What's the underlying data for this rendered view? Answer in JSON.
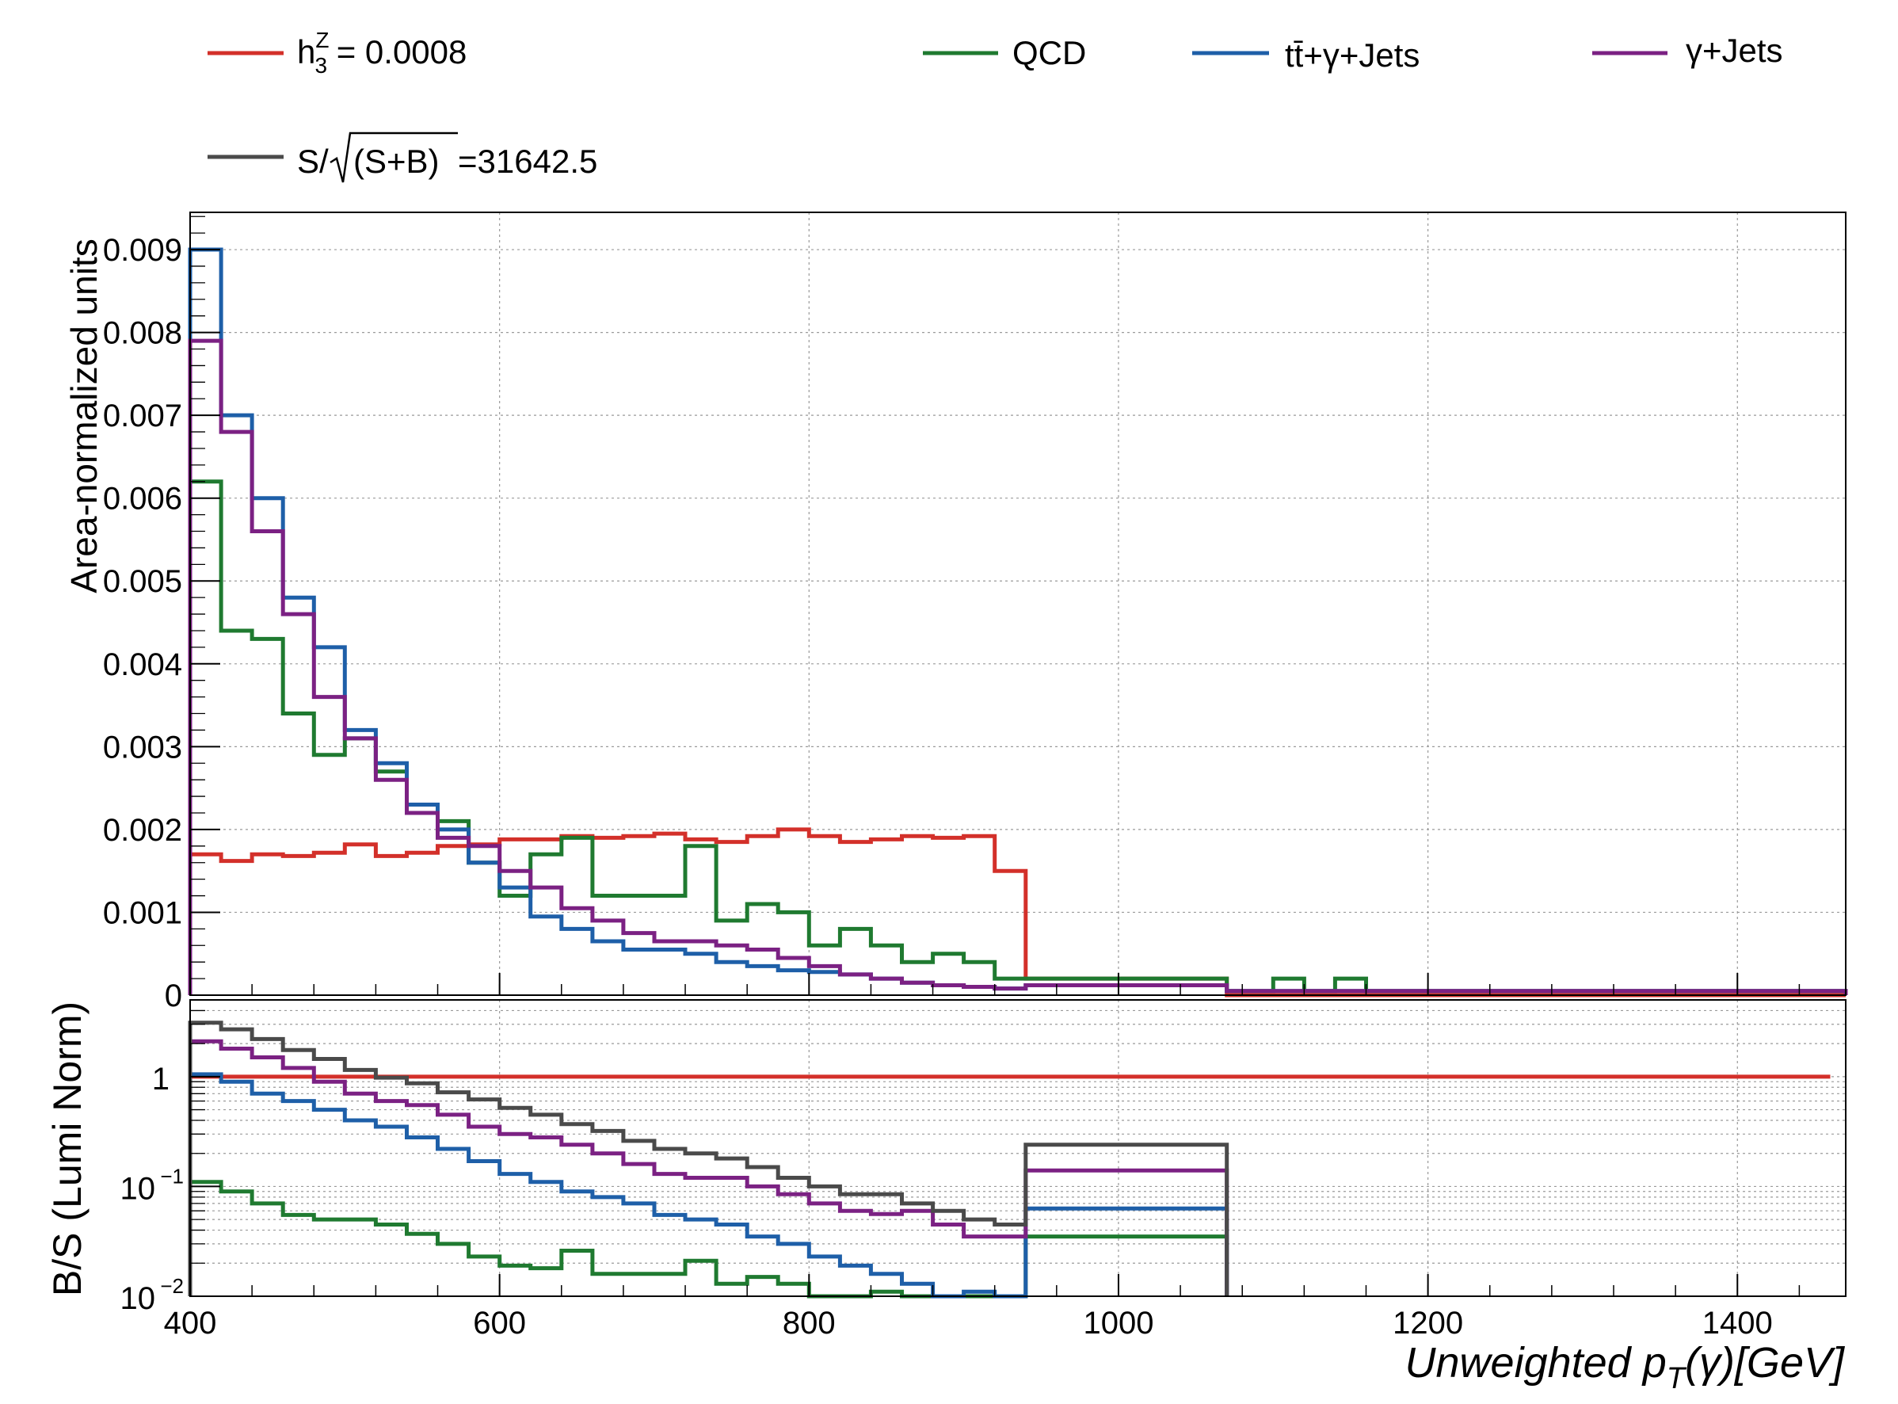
{
  "legend": {
    "entries": [
      {
        "key": "signal",
        "label": "h",
        "sup": "Z",
        "sub": "3",
        "suffix": " = 0.0008",
        "color": "#d3302a"
      },
      {
        "key": "qcd",
        "label": "QCD",
        "color": "#1f7a30"
      },
      {
        "key": "ttgj",
        "label": "tt̄+γ+Jets",
        "color": "#1e5fa8"
      },
      {
        "key": "gj",
        "label": "γ+Jets",
        "color": "#7b2183"
      },
      {
        "key": "sig",
        "label": "S/",
        "radical": "(S+B)",
        "suffix": "=31642.5",
        "color": "#4a4a4a"
      }
    ]
  },
  "chart_data": [
    {
      "type": "line",
      "title": "",
      "xlabel": "Unweighted   p_T(γ)[GeV]",
      "xlabel_parts": {
        "prefix": "Unweighted   p",
        "sub": "T",
        "suffix": "(γ)[GeV]"
      },
      "ylabel": "Area-normalized units",
      "xlim": [
        400,
        1470
      ],
      "ylim": [
        0,
        0.00945
      ],
      "grid": true,
      "xticks": [
        {
          "value": 400,
          "label": "400"
        },
        {
          "value": 600,
          "label": "600"
        },
        {
          "value": 800,
          "label": "800"
        },
        {
          "value": 1000,
          "label": "1000"
        },
        {
          "value": 1200,
          "label": "1200"
        },
        {
          "value": 1400,
          "label": "1400"
        }
      ],
      "yticks": [
        {
          "value": 0,
          "label": "0"
        },
        {
          "value": 0.001,
          "label": "0.001"
        },
        {
          "value": 0.002,
          "label": "0.002"
        },
        {
          "value": 0.003,
          "label": "0.003"
        },
        {
          "value": 0.004,
          "label": "0.004"
        },
        {
          "value": 0.005,
          "label": "0.005"
        },
        {
          "value": 0.006,
          "label": "0.006"
        },
        {
          "value": 0.007,
          "label": "0.007"
        },
        {
          "value": 0.008,
          "label": "0.008"
        },
        {
          "value": 0.009,
          "label": "0.009"
        }
      ],
      "series": [
        {
          "key": "signal",
          "color": "#d3302a",
          "edges": [
            400,
            420,
            440,
            460,
            480,
            500,
            520,
            540,
            560,
            580,
            600,
            620,
            640,
            660,
            680,
            700,
            720,
            740,
            760,
            780,
            800,
            820,
            840,
            860,
            880,
            900,
            920,
            940,
            1070,
            1470
          ],
          "values": [
            0.0017,
            0.00162,
            0.0017,
            0.00168,
            0.00172,
            0.00182,
            0.00168,
            0.00172,
            0.0018,
            0.00182,
            0.00188,
            0.00188,
            0.00192,
            0.0019,
            0.00192,
            0.00195,
            0.00188,
            0.00185,
            0.00192,
            0.002,
            0.00192,
            0.00185,
            0.00188,
            0.00192,
            0.0019,
            0.00192,
            0.0015,
            0.0002,
            0.0
          ]
        },
        {
          "key": "qcd",
          "color": "#1f7a30",
          "edges": [
            400,
            420,
            440,
            460,
            480,
            500,
            520,
            540,
            560,
            580,
            600,
            620,
            640,
            660,
            680,
            700,
            720,
            740,
            760,
            780,
            800,
            820,
            840,
            860,
            880,
            900,
            920,
            940,
            1070,
            1100,
            1120,
            1140,
            1160,
            1470
          ],
          "values": [
            0.0062,
            0.0044,
            0.0043,
            0.0034,
            0.0029,
            0.0031,
            0.0027,
            0.0022,
            0.0021,
            0.0016,
            0.0012,
            0.0017,
            0.0019,
            0.0012,
            0.0012,
            0.0012,
            0.0018,
            0.0009,
            0.0011,
            0.001,
            0.0006,
            0.0008,
            0.0006,
            0.0004,
            0.0005,
            0.0004,
            0.0002,
            0.0002,
            5e-05,
            0.0002,
            5e-05,
            0.0002,
            5e-05
          ]
        },
        {
          "key": "ttgj",
          "color": "#1e5fa8",
          "edges": [
            400,
            420,
            440,
            460,
            480,
            500,
            520,
            540,
            560,
            580,
            600,
            620,
            640,
            660,
            680,
            700,
            720,
            740,
            760,
            780,
            800,
            820,
            840,
            860,
            880,
            900,
            920,
            940,
            1070,
            1470
          ],
          "values": [
            0.009,
            0.007,
            0.006,
            0.0048,
            0.0042,
            0.0032,
            0.0028,
            0.0023,
            0.002,
            0.0016,
            0.0013,
            0.00095,
            0.0008,
            0.00065,
            0.00055,
            0.00055,
            0.0005,
            0.0004,
            0.00035,
            0.0003,
            0.00028,
            0.00025,
            0.0002,
            0.00015,
            0.00012,
            0.0001,
            8e-05,
            0.00012,
            5e-05
          ]
        },
        {
          "key": "gj",
          "color": "#7b2183",
          "edges": [
            400,
            420,
            440,
            460,
            480,
            500,
            520,
            540,
            560,
            580,
            600,
            620,
            640,
            660,
            680,
            700,
            720,
            740,
            760,
            780,
            800,
            820,
            840,
            860,
            880,
            900,
            920,
            940,
            1070,
            1470
          ],
          "values": [
            0.0079,
            0.0068,
            0.0056,
            0.0046,
            0.0036,
            0.0031,
            0.0026,
            0.0022,
            0.0019,
            0.0018,
            0.0015,
            0.0013,
            0.00105,
            0.0009,
            0.00075,
            0.00065,
            0.00065,
            0.0006,
            0.00055,
            0.00045,
            0.00035,
            0.00025,
            0.0002,
            0.00015,
            0.00012,
            0.0001,
            8e-05,
            0.00012,
            5e-05
          ]
        }
      ]
    },
    {
      "type": "line",
      "title": "",
      "xlabel": "",
      "ylabel": "B/S (Lumi Norm)",
      "xlim": [
        400,
        1470
      ],
      "ylim": [
        0.01,
        5
      ],
      "yscale": "log",
      "grid": true,
      "yticks": [
        {
          "value": 1,
          "label": "1",
          "exp": ""
        },
        {
          "value": 0.1,
          "label": "10",
          "exp": "−1"
        },
        {
          "value": 0.01,
          "label": "10",
          "exp": "−2"
        }
      ],
      "series": [
        {
          "key": "signal",
          "color": "#d3302a",
          "edges": [
            400,
            1460
          ],
          "values": [
            1.0
          ]
        },
        {
          "key": "qcd",
          "color": "#1f7a30",
          "edges": [
            400,
            420,
            440,
            460,
            480,
            500,
            520,
            540,
            560,
            580,
            600,
            620,
            640,
            660,
            680,
            700,
            720,
            740,
            760,
            780,
            800,
            820,
            840,
            860,
            880,
            900,
            920,
            940,
            1070
          ],
          "values": [
            0.11,
            0.09,
            0.07,
            0.055,
            0.05,
            0.05,
            0.045,
            0.037,
            0.03,
            0.023,
            0.019,
            0.018,
            0.026,
            0.016,
            0.016,
            0.016,
            0.021,
            0.013,
            0.015,
            0.013,
            0.0095,
            0.0095,
            0.011,
            0.0095,
            0.0095,
            0.009,
            0.009,
            0.035
          ]
        },
        {
          "key": "ttgj",
          "color": "#1e5fa8",
          "edges": [
            400,
            420,
            440,
            460,
            480,
            500,
            520,
            540,
            560,
            580,
            600,
            620,
            640,
            660,
            680,
            700,
            720,
            740,
            760,
            780,
            800,
            820,
            840,
            860,
            880,
            900,
            920,
            940,
            1070
          ],
          "values": [
            1.05,
            0.9,
            0.7,
            0.6,
            0.5,
            0.4,
            0.35,
            0.28,
            0.22,
            0.17,
            0.13,
            0.11,
            0.09,
            0.08,
            0.07,
            0.055,
            0.05,
            0.045,
            0.035,
            0.03,
            0.023,
            0.019,
            0.016,
            0.013,
            0.0095,
            0.011,
            0.0095,
            0.063
          ]
        },
        {
          "key": "gj",
          "color": "#7b2183",
          "edges": [
            400,
            420,
            440,
            460,
            480,
            500,
            520,
            540,
            560,
            580,
            600,
            620,
            640,
            660,
            680,
            700,
            720,
            740,
            760,
            780,
            800,
            820,
            840,
            860,
            880,
            900,
            920,
            940,
            1070
          ],
          "values": [
            2.1,
            1.8,
            1.5,
            1.2,
            0.9,
            0.7,
            0.6,
            0.55,
            0.45,
            0.35,
            0.3,
            0.28,
            0.24,
            0.2,
            0.16,
            0.13,
            0.12,
            0.12,
            0.1,
            0.085,
            0.07,
            0.06,
            0.056,
            0.06,
            0.045,
            0.035,
            0.035,
            0.14
          ]
        },
        {
          "key": "sum",
          "color": "#4a4a4a",
          "edges": [
            400,
            420,
            440,
            460,
            480,
            500,
            520,
            540,
            560,
            580,
            600,
            620,
            640,
            660,
            680,
            700,
            720,
            740,
            760,
            780,
            800,
            820,
            840,
            860,
            880,
            900,
            920,
            940,
            1070
          ],
          "values": [
            3.1,
            2.7,
            2.2,
            1.75,
            1.45,
            1.15,
            0.98,
            0.87,
            0.72,
            0.62,
            0.52,
            0.45,
            0.37,
            0.32,
            0.26,
            0.22,
            0.2,
            0.18,
            0.15,
            0.12,
            0.1,
            0.085,
            0.085,
            0.07,
            0.06,
            0.05,
            0.045,
            0.24
          ]
        }
      ]
    }
  ]
}
